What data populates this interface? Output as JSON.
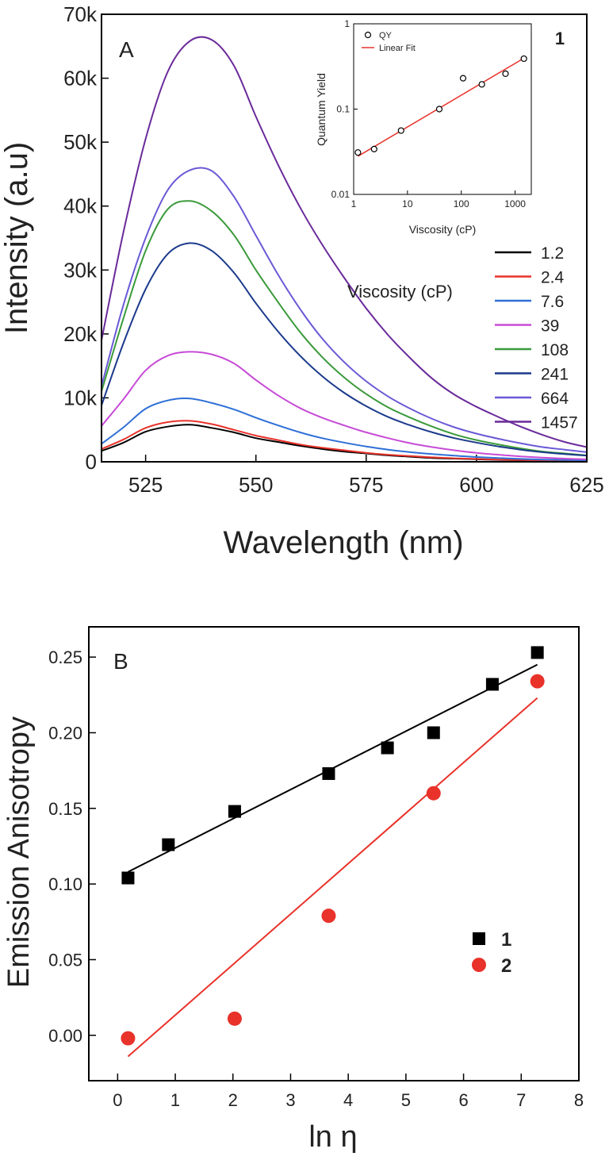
{
  "chart_data": [
    {
      "type": "line",
      "panel_label": "A",
      "xlabel": "Wavelength (nm)",
      "ylabel": "Intensity (a.u)",
      "xlim": [
        515,
        625
      ],
      "ylim": [
        0,
        70000
      ],
      "x_ticks": [
        {
          "value": 525,
          "label": "525"
        },
        {
          "value": 550,
          "label": "550"
        },
        {
          "value": 575,
          "label": "575"
        },
        {
          "value": 600,
          "label": "600"
        },
        {
          "value": 625,
          "label": "625"
        }
      ],
      "y_ticks": [
        {
          "value": 0,
          "label": "0"
        },
        {
          "value": 10000,
          "label": "10k"
        },
        {
          "value": 20000,
          "label": "20k"
        },
        {
          "value": 30000,
          "label": "30k"
        },
        {
          "value": 40000,
          "label": "40k"
        },
        {
          "value": 50000,
          "label": "50k"
        },
        {
          "value": 60000,
          "label": "60k"
        },
        {
          "value": 70000,
          "label": "70k"
        }
      ],
      "legend_title": "Viscosity (cP)",
      "x": [
        515,
        520,
        525,
        530,
        535,
        540,
        545,
        550,
        555,
        560,
        565,
        570,
        575,
        580,
        585,
        590,
        595,
        600,
        605,
        610,
        615,
        620,
        625
      ],
      "series": [
        {
          "name": "1.2",
          "color": "#000000",
          "values": [
            1700,
            3000,
            4700,
            5500,
            5800,
            5300,
            4600,
            3700,
            3100,
            2500,
            2000,
            1600,
            1300,
            1000,
            800,
            600,
            500,
            400,
            300,
            250,
            200,
            150,
            100
          ]
        },
        {
          "name": "2.4",
          "color": "#e8322a",
          "values": [
            2000,
            3500,
            5300,
            6200,
            6400,
            5900,
            5000,
            4100,
            3400,
            2700,
            2200,
            1800,
            1400,
            1100,
            900,
            700,
            550,
            450,
            350,
            280,
            220,
            170,
            120
          ]
        },
        {
          "name": "7.6",
          "color": "#2e6fd6",
          "values": [
            2800,
            5400,
            8300,
            9600,
            9900,
            9200,
            8200,
            6900,
            5700,
            4600,
            3700,
            3000,
            2400,
            1900,
            1500,
            1200,
            950,
            750,
            600,
            450,
            350,
            280,
            220
          ]
        },
        {
          "name": "39",
          "color": "#c74bd6",
          "values": [
            5600,
            9800,
            14300,
            16600,
            17200,
            16800,
            15400,
            12800,
            10400,
            8400,
            6900,
            5700,
            4600,
            3700,
            2900,
            2300,
            1800,
            1400,
            1100,
            850,
            650,
            500,
            380
          ]
        },
        {
          "name": "108",
          "color": "#3a9a3a",
          "values": [
            11000,
            22500,
            33000,
            39500,
            40800,
            39200,
            35500,
            30000,
            25000,
            20300,
            16400,
            13200,
            10600,
            8500,
            6900,
            5500,
            4300,
            3400,
            2700,
            2100,
            1600,
            1300,
            1000
          ]
        },
        {
          "name": "241",
          "color": "#1b3a8c",
          "values": [
            8800,
            18600,
            27000,
            32500,
            34200,
            33000,
            29600,
            24800,
            20400,
            16600,
            13400,
            10800,
            8700,
            7000,
            5700,
            4600,
            3700,
            3000,
            2400,
            1900,
            1500,
            1200,
            950
          ]
        },
        {
          "name": "664",
          "color": "#6a5ad6",
          "values": [
            11800,
            24600,
            35000,
            42500,
            45600,
            45500,
            41500,
            35400,
            29300,
            23900,
            19300,
            15600,
            12600,
            10200,
            8300,
            6700,
            5400,
            4400,
            3600,
            2900,
            2300,
            1900,
            1500
          ]
        },
        {
          "name": "1457",
          "color": "#6a2a9a",
          "values": [
            19000,
            36000,
            50500,
            61000,
            65800,
            66000,
            62000,
            54000,
            46500,
            39800,
            34000,
            28800,
            24000,
            19800,
            16200,
            13000,
            10500,
            8600,
            7000,
            5500,
            4200,
            3100,
            2300
          ]
        }
      ],
      "inset": {
        "type": "scatter",
        "panel_number": "1",
        "xlabel": "Viscosity (cP)",
        "ylabel": "Quantum Yield",
        "xscale": "log",
        "yscale": "log",
        "xlim": [
          1,
          2000
        ],
        "ylim": [
          0.01,
          1
        ],
        "x_ticks": [
          {
            "value": 1,
            "label": "1"
          },
          {
            "value": 10,
            "label": "10"
          },
          {
            "value": 100,
            "label": "100"
          },
          {
            "value": 1000,
            "label": "1000"
          }
        ],
        "y_ticks": [
          {
            "value": 0.01,
            "label": "0.01"
          },
          {
            "value": 0.1,
            "label": "0.1"
          },
          {
            "value": 1,
            "label": "1"
          }
        ],
        "legend": {
          "points": "QY",
          "fit": "Linear Fit"
        },
        "points": [
          {
            "x": 1.2,
            "y": 0.031
          },
          {
            "x": 2.4,
            "y": 0.034
          },
          {
            "x": 7.6,
            "y": 0.056
          },
          {
            "x": 39,
            "y": 0.1
          },
          {
            "x": 108,
            "y": 0.23
          },
          {
            "x": 241,
            "y": 0.195
          },
          {
            "x": 664,
            "y": 0.26
          },
          {
            "x": 1457,
            "y": 0.39
          }
        ],
        "fit": [
          {
            "x": 1.2,
            "y": 0.028
          },
          {
            "x": 1457,
            "y": 0.395
          }
        ]
      }
    },
    {
      "type": "scatter",
      "panel_label": "B",
      "xlabel": "ln η",
      "ylabel": "Emission Anisotropy",
      "xlim": [
        -0.5,
        8
      ],
      "ylim": [
        -0.03,
        0.27
      ],
      "x_ticks": [
        {
          "value": 0,
          "label": "0"
        },
        {
          "value": 1,
          "label": "1"
        },
        {
          "value": 2,
          "label": "2"
        },
        {
          "value": 3,
          "label": "3"
        },
        {
          "value": 4,
          "label": "4"
        },
        {
          "value": 5,
          "label": "5"
        },
        {
          "value": 6,
          "label": "6"
        },
        {
          "value": 7,
          "label": "7"
        },
        {
          "value": 8,
          "label": "8"
        }
      ],
      "y_ticks": [
        {
          "value": 0,
          "label": "0.00"
        },
        {
          "value": 0.05,
          "label": "0.05"
        },
        {
          "value": 0.1,
          "label": "0.10"
        },
        {
          "value": 0.15,
          "label": "0.15"
        },
        {
          "value": 0.2,
          "label": "0.20"
        },
        {
          "value": 0.25,
          "label": "0.25"
        }
      ],
      "series": [
        {
          "name": "1",
          "marker": "square",
          "color": "#000000",
          "x": [
            0.18,
            0.88,
            2.03,
            3.66,
            4.68,
            5.48,
            6.5,
            7.28
          ],
          "y": [
            0.104,
            0.126,
            0.148,
            0.173,
            0.19,
            0.2,
            0.232,
            0.253
          ],
          "fit": [
            {
              "x": 0.18,
              "y": 0.108
            },
            {
              "x": 7.28,
              "y": 0.245
            }
          ]
        },
        {
          "name": "2",
          "marker": "circle",
          "color": "#e8322a",
          "x": [
            0.18,
            2.03,
            3.66,
            5.48,
            7.28
          ],
          "y": [
            -0.002,
            0.011,
            0.079,
            0.16,
            0.234
          ],
          "fit": [
            {
              "x": 0.18,
              "y": -0.014
            },
            {
              "x": 7.28,
              "y": 0.223
            }
          ]
        }
      ]
    }
  ]
}
